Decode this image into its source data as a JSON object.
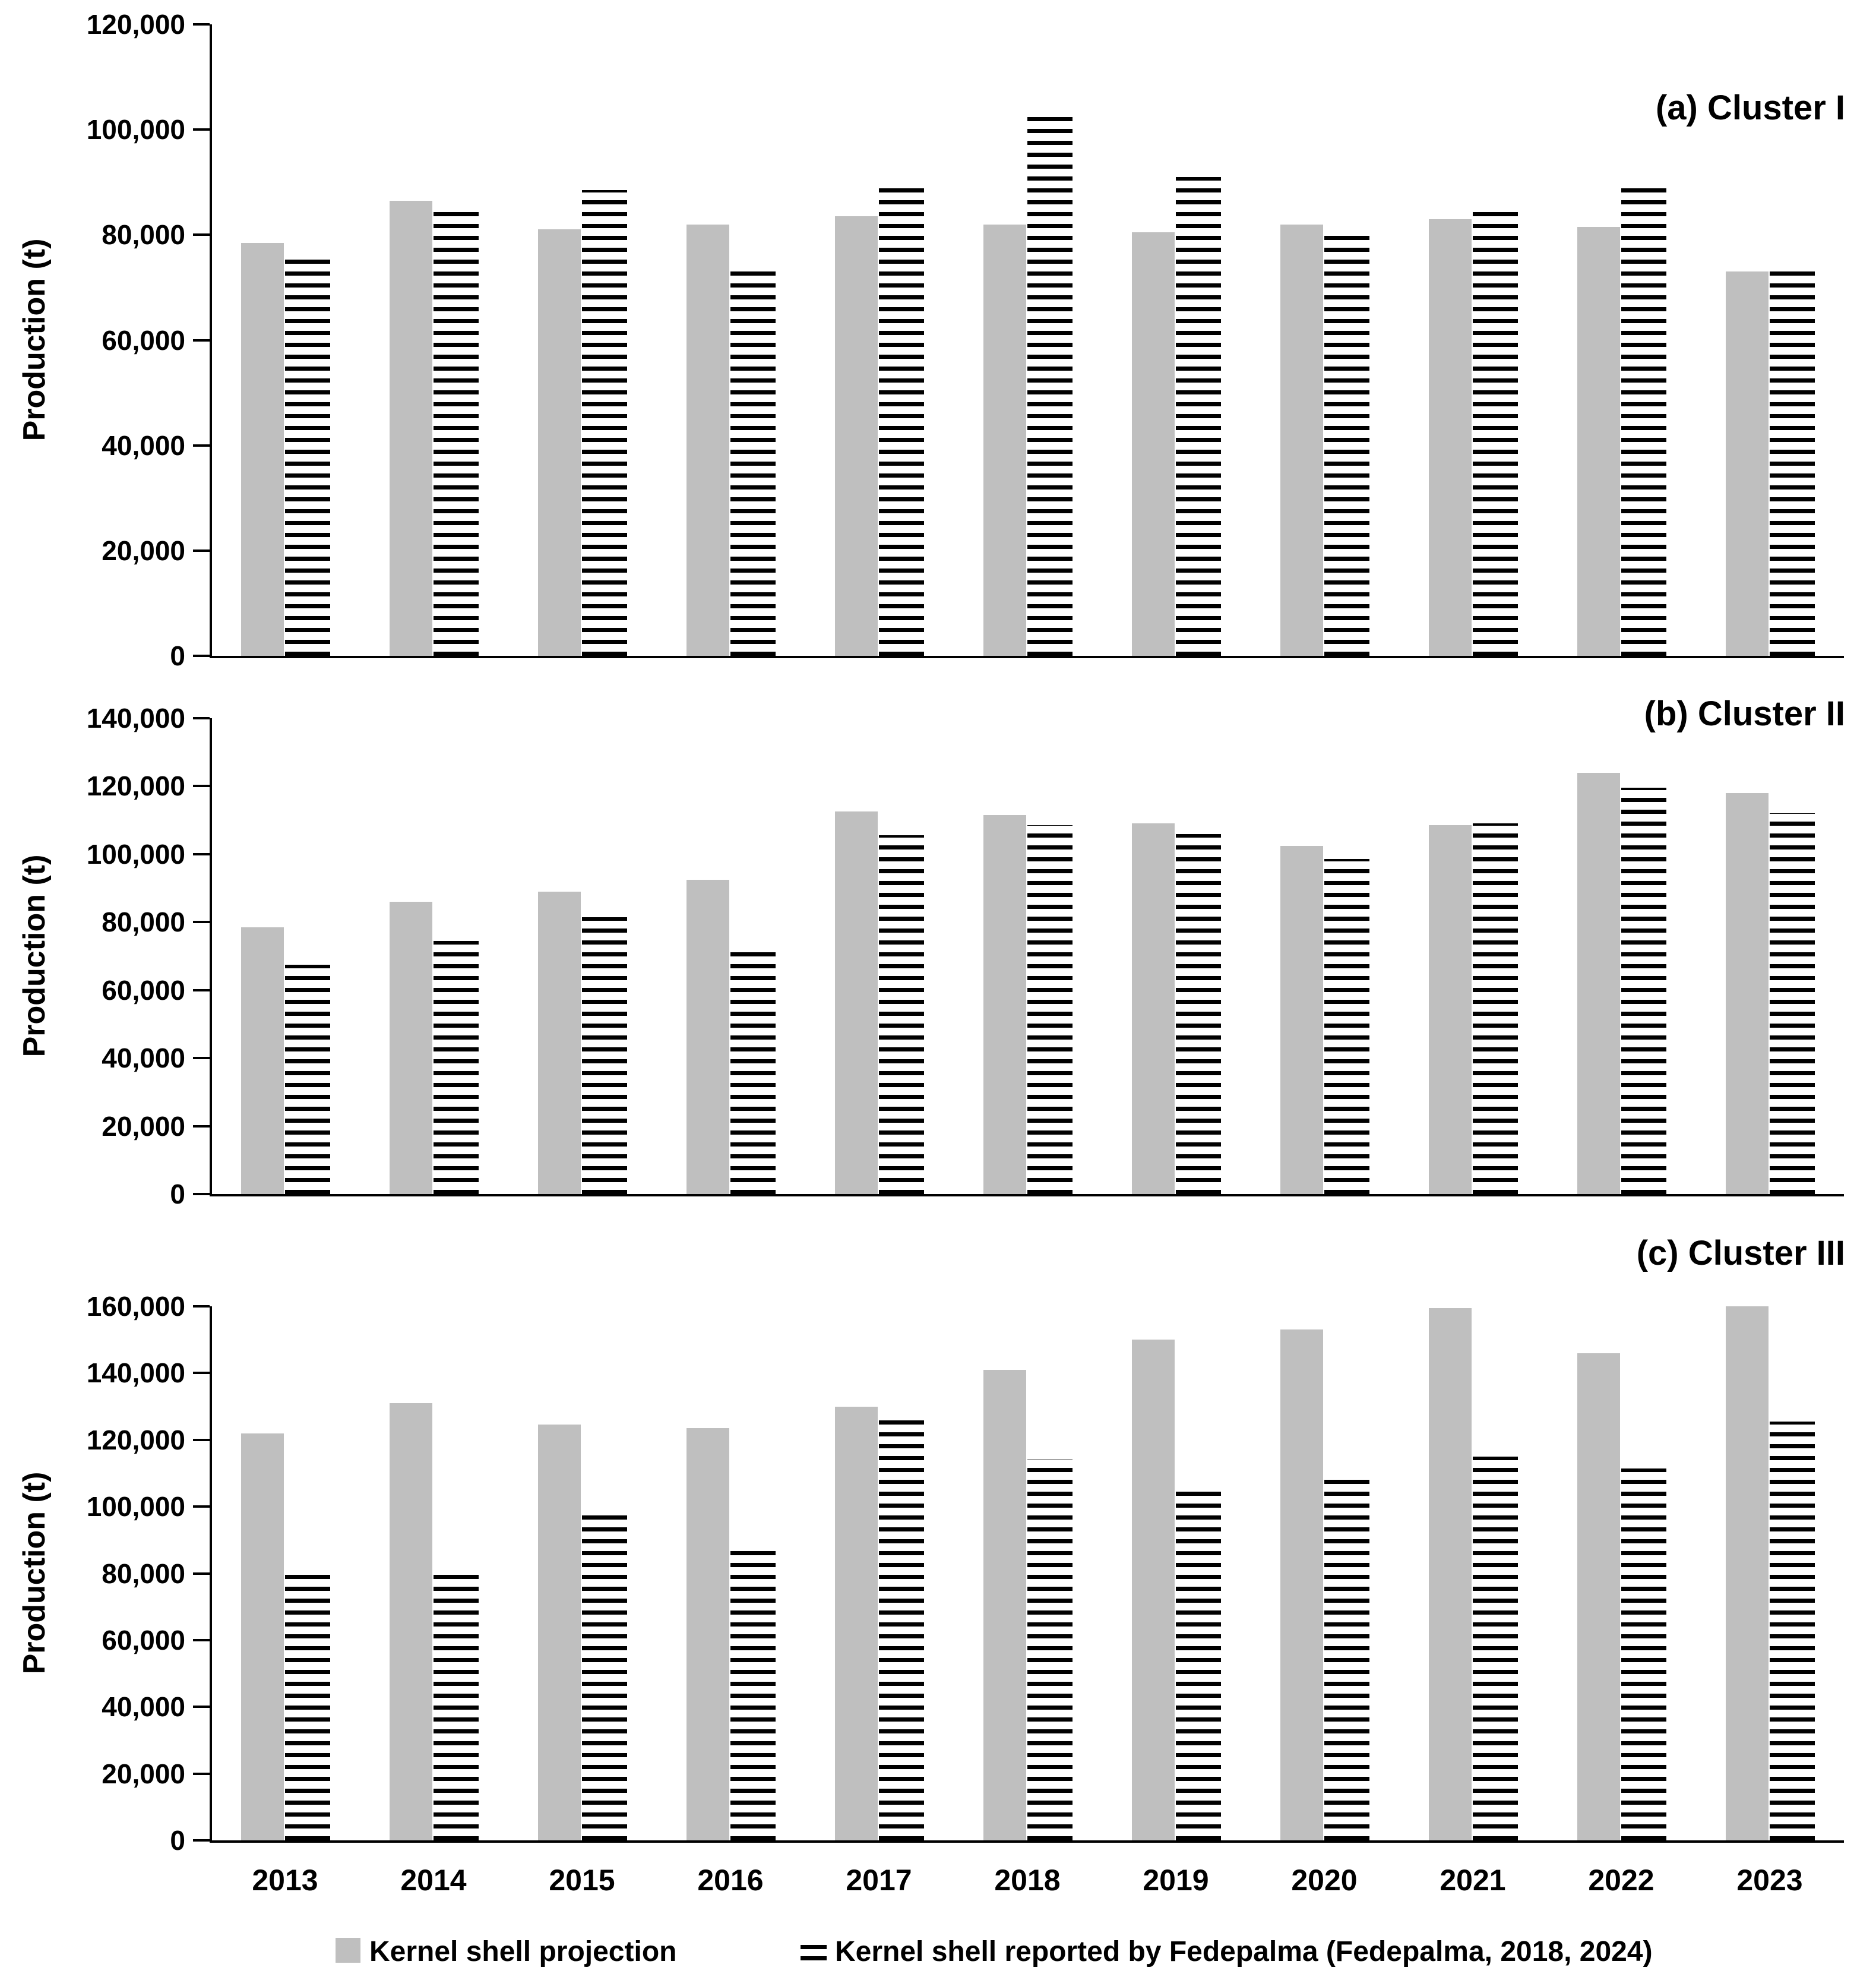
{
  "figure": {
    "background": "#ffffff"
  },
  "colors": {
    "projection_fill": "#bfbfbf",
    "reported_stripe": "#000000",
    "axis": "#000000",
    "text": "#000000"
  },
  "legend": {
    "items": [
      {
        "swatch": "gray-square",
        "label": "Kernel shell projection"
      },
      {
        "swatch": "striped-square",
        "label": "Kernel shell reported by Fedepalma (Fedepalma, 2018, 2024)"
      }
    ]
  },
  "chart_data": [
    {
      "panel": "a",
      "type": "bar",
      "title": "(a) Cluster I",
      "ylabel": "Production (t)",
      "xlabel": "",
      "ylim": [
        0,
        120000
      ],
      "ytick_step": 20000,
      "grid": false,
      "legend_position": "bottom",
      "categories": [
        "2013",
        "2014",
        "2015",
        "2016",
        "2017",
        "2018",
        "2019",
        "2020",
        "2021",
        "2022",
        "2023"
      ],
      "series": [
        {
          "name": "Kernel shell projection",
          "values": [
            78500,
            86500,
            81000,
            82000,
            83500,
            82000,
            80500,
            82000,
            83000,
            81500,
            73000
          ]
        },
        {
          "name": "Kernel shell reported by Fedepalma (Fedepalma, 2018, 2024)",
          "values": [
            75500,
            84500,
            88500,
            73500,
            89000,
            102500,
            91000,
            80000,
            84500,
            89000,
            73500
          ]
        }
      ]
    },
    {
      "panel": "b",
      "type": "bar",
      "title": "(b) Cluster II",
      "ylabel": "Production (t)",
      "xlabel": "",
      "ylim": [
        0,
        140000
      ],
      "ytick_step": 20000,
      "grid": false,
      "legend_position": "bottom",
      "categories": [
        "2013",
        "2014",
        "2015",
        "2016",
        "2017",
        "2018",
        "2019",
        "2020",
        "2021",
        "2022",
        "2023"
      ],
      "series": [
        {
          "name": "Kernel shell projection",
          "values": [
            78500,
            86000,
            89000,
            92500,
            112500,
            111500,
            109000,
            102500,
            108500,
            124000,
            118000
          ]
        },
        {
          "name": "Kernel shell reported by Fedepalma (Fedepalma, 2018, 2024)",
          "values": [
            67500,
            74500,
            81500,
            71500,
            105500,
            108500,
            106000,
            98500,
            109000,
            119500,
            112000
          ]
        }
      ]
    },
    {
      "panel": "c",
      "type": "bar",
      "title": "(c) Cluster III",
      "ylabel": "Production (t)",
      "xlabel": "",
      "ylim": [
        0,
        160000
      ],
      "ytick_step": 20000,
      "grid": false,
      "legend_position": "bottom",
      "categories": [
        "2013",
        "2014",
        "2015",
        "2016",
        "2017",
        "2018",
        "2019",
        "2020",
        "2021",
        "2022",
        "2023"
      ],
      "series": [
        {
          "name": "Kernel shell projection",
          "values": [
            122000,
            131000,
            124500,
            123500,
            130000,
            141000,
            150000,
            153000,
            159500,
            146000,
            160000
          ]
        },
        {
          "name": "Kernel shell reported by Fedepalma (Fedepalma, 2018, 2024)",
          "values": [
            81500,
            79500,
            97500,
            89000,
            126000,
            114000,
            105000,
            108000,
            115000,
            111500,
            125500
          ]
        }
      ]
    }
  ]
}
